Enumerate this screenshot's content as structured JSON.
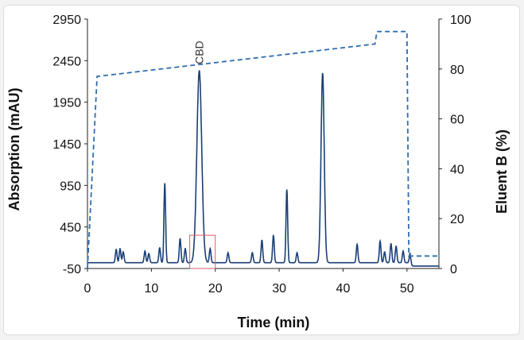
{
  "chart_data": {
    "type": "line",
    "title": "",
    "xlabel": "Time (min)",
    "ylabel_left": "Absorption (mAU)",
    "ylabel_right": "Eluent B (%)",
    "xlim": [
      0,
      55
    ],
    "ylim_left": [
      -50,
      2950
    ],
    "ylim_right": [
      0,
      100
    ],
    "xticks": [
      "0",
      "10",
      "20",
      "30",
      "40",
      "50"
    ],
    "yticks_left": [
      "-50",
      "450",
      "950",
      "1450",
      "1950",
      "2450",
      "2950"
    ],
    "yticks_right": [
      "0",
      "20",
      "40",
      "60",
      "80",
      "100"
    ],
    "annotation": "CBD",
    "highlight_box": {
      "x_range": [
        16,
        20
      ],
      "y_range": [
        -50,
        350
      ],
      "color": "#e05a6a"
    },
    "colors": {
      "absorption": "#1a3f77",
      "eluent": "#2f6db0"
    },
    "series": [
      {
        "axis": "left",
        "style": "solid",
        "peaks": [
          {
            "x": 4.5,
            "y": 180
          },
          {
            "x": 5.1,
            "y": 190
          },
          {
            "x": 5.6,
            "y": 150
          },
          {
            "x": 9.0,
            "y": 160
          },
          {
            "x": 9.6,
            "y": 130
          },
          {
            "x": 11.3,
            "y": 200
          },
          {
            "x": 12.1,
            "y": 980
          },
          {
            "x": 14.5,
            "y": 310
          },
          {
            "x": 15.3,
            "y": 190
          },
          {
            "x": 17.5,
            "y": 2330
          },
          {
            "x": 19.2,
            "y": 190
          },
          {
            "x": 22.0,
            "y": 140
          },
          {
            "x": 25.8,
            "y": 140
          },
          {
            "x": 27.3,
            "y": 290
          },
          {
            "x": 29.1,
            "y": 350
          },
          {
            "x": 31.2,
            "y": 900
          },
          {
            "x": 32.8,
            "y": 140
          },
          {
            "x": 36.8,
            "y": 2300
          },
          {
            "x": 42.2,
            "y": 240
          },
          {
            "x": 45.8,
            "y": 280
          },
          {
            "x": 46.5,
            "y": 150
          },
          {
            "x": 47.5,
            "y": 250
          },
          {
            "x": 48.3,
            "y": 220
          },
          {
            "x": 49.4,
            "y": 160
          },
          {
            "x": 50.5,
            "y": 140
          }
        ]
      },
      {
        "axis": "right",
        "style": "dashed",
        "x": [
          0,
          1.5,
          45,
          45.3,
          50,
          50.3,
          55
        ],
        "y": [
          0,
          77,
          90,
          95,
          95,
          5,
          5
        ]
      }
    ]
  }
}
